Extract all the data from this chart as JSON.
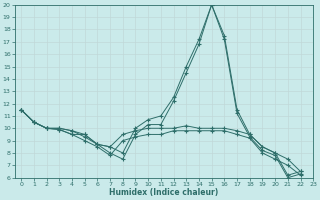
{
  "xlabel": "Humidex (Indice chaleur)",
  "background_color": "#caeaea",
  "grid_color": "#c0d8d8",
  "line_color": "#2e6e6a",
  "xlim": [
    -0.5,
    23
  ],
  "ylim": [
    6,
    20
  ],
  "xticks": [
    0,
    1,
    2,
    3,
    4,
    5,
    6,
    7,
    8,
    9,
    10,
    11,
    12,
    13,
    14,
    15,
    16,
    17,
    18,
    19,
    20,
    21,
    22,
    23
  ],
  "yticks": [
    6,
    7,
    8,
    9,
    10,
    11,
    12,
    13,
    14,
    15,
    16,
    17,
    18,
    19,
    20
  ],
  "lines": [
    [
      11.5,
      10.5,
      10.0,
      10.0,
      9.8,
      9.5,
      8.7,
      8.5,
      8.0,
      10.0,
      10.7,
      11.0,
      12.5,
      15.0,
      17.2,
      20.0,
      17.5,
      11.5,
      9.5,
      8.5,
      8.0,
      6.2,
      6.5
    ],
    [
      11.5,
      10.5,
      10.0,
      10.0,
      9.8,
      9.3,
      8.7,
      8.0,
      7.5,
      9.5,
      10.3,
      10.3,
      12.2,
      14.5,
      16.8,
      20.0,
      17.2,
      11.2,
      9.3,
      8.2,
      7.8,
      6.0,
      6.3
    ],
    [
      11.5,
      10.5,
      10.0,
      9.9,
      9.5,
      9.5,
      8.7,
      8.5,
      9.5,
      9.8,
      10.0,
      10.0,
      10.0,
      10.2,
      10.0,
      10.0,
      10.0,
      9.8,
      9.5,
      8.5,
      8.0,
      7.5,
      6.5
    ],
    [
      11.5,
      10.5,
      10.0,
      9.9,
      9.5,
      9.0,
      8.5,
      7.8,
      9.0,
      9.3,
      9.5,
      9.5,
      9.8,
      9.8,
      9.8,
      9.8,
      9.8,
      9.5,
      9.2,
      8.0,
      7.5,
      7.0,
      6.2
    ]
  ]
}
